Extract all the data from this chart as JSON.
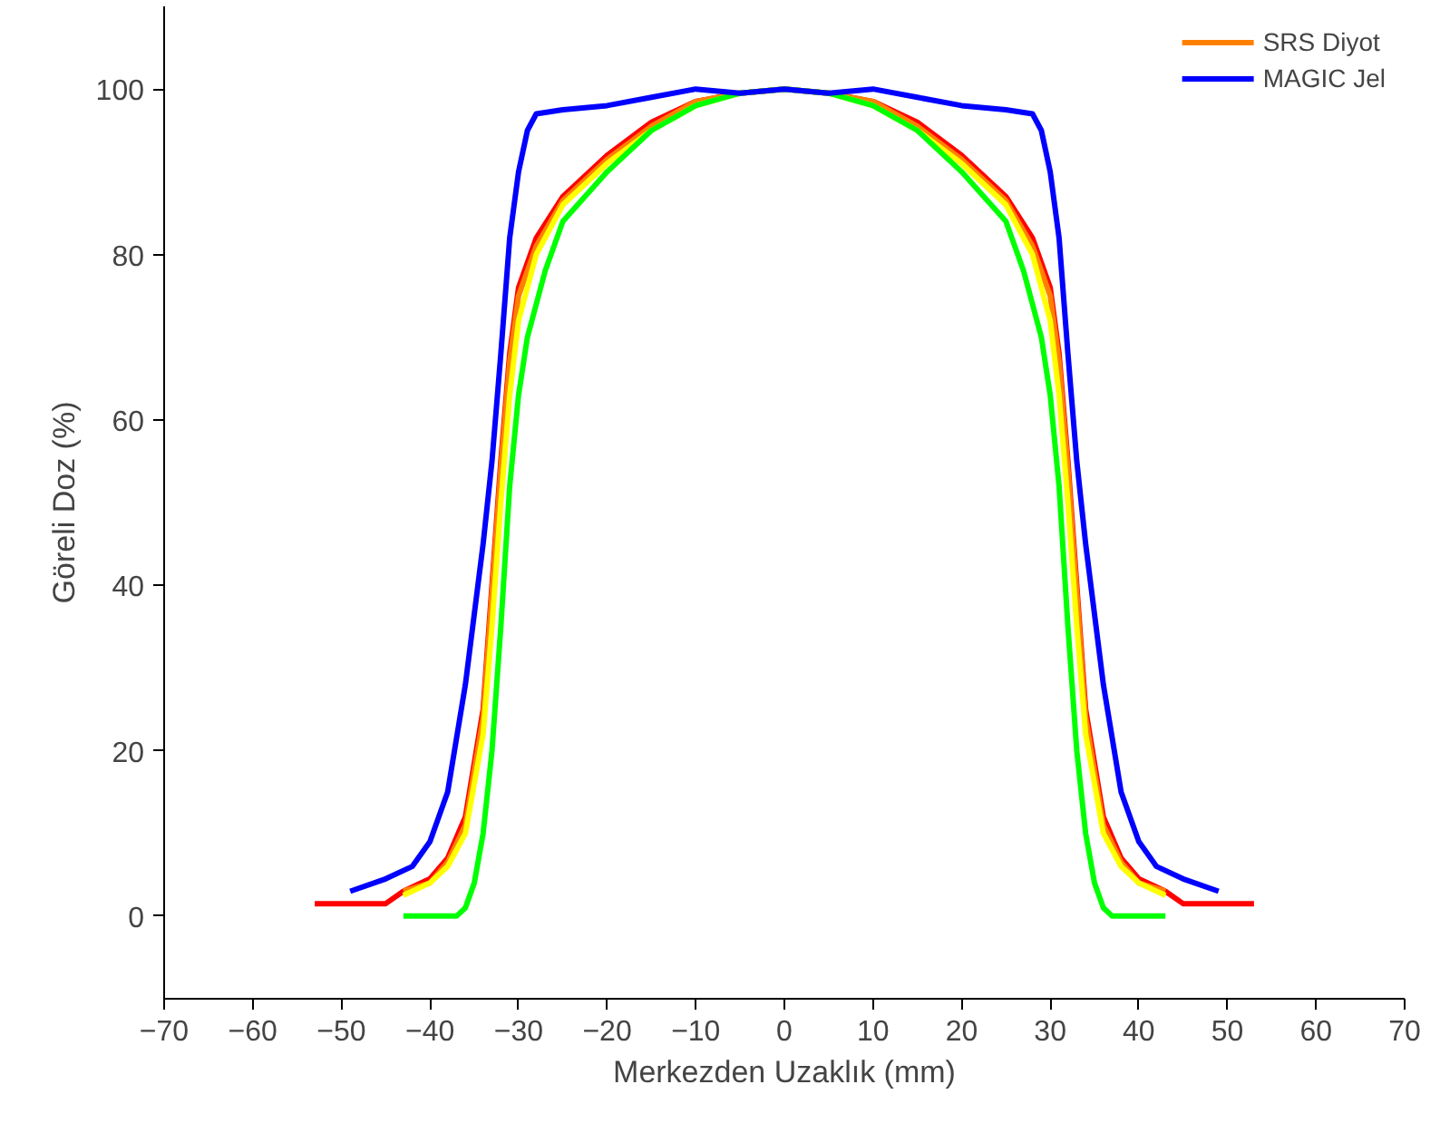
{
  "chart_data": {
    "type": "line",
    "xlabel": "Merkezden Uzaklık (mm)",
    "ylabel": "Göreli Doz (%)",
    "xlim": [
      -70,
      70
    ],
    "xticks": [
      -70,
      -60,
      -50,
      -40,
      -30,
      -20,
      -10,
      0,
      10,
      20,
      30,
      40,
      50,
      60,
      70
    ],
    "ylim": [
      -10,
      110
    ],
    "yticks": [
      0,
      20,
      40,
      60,
      80,
      100
    ],
    "grid": false,
    "legend": "top right",
    "line_style": "solid",
    "marker": "none",
    "series": [
      {
        "color": "#ff0000",
        "x": [
          -53,
          -45,
          -43,
          -40,
          -38,
          -36,
          -34,
          -33,
          -32,
          -31,
          -30,
          -28,
          -25,
          -20,
          -15,
          -10,
          -5,
          0,
          5,
          10,
          15,
          20,
          25,
          28,
          30,
          31,
          32,
          33,
          34,
          36,
          38,
          40,
          43,
          45,
          53
        ],
        "values": [
          1.5,
          1.5,
          3,
          4.5,
          7,
          12,
          25,
          40,
          55,
          68,
          76,
          82,
          87,
          92,
          96,
          98.5,
          99.5,
          100,
          99.5,
          98.5,
          96,
          92,
          87,
          82,
          76,
          68,
          55,
          40,
          25,
          12,
          7,
          4.5,
          3,
          1.5,
          1.5
        ]
      },
      {
        "name": "SRS Diyot",
        "color": "#ff8000",
        "x": [
          -43,
          -40,
          -38,
          -36,
          -34,
          -33,
          -32,
          -31,
          -30,
          -28,
          -25,
          -20,
          -15,
          -10,
          -5,
          0,
          5,
          10,
          15,
          20,
          25,
          28,
          30,
          31,
          32,
          33,
          34,
          36,
          38,
          40,
          43
        ],
        "values": [
          3,
          4,
          6.5,
          11,
          24,
          39,
          54,
          67,
          75,
          81,
          86.5,
          91.5,
          95.5,
          98.5,
          99.5,
          100,
          99.5,
          98.5,
          95.5,
          91.5,
          86.5,
          81,
          75,
          67,
          54,
          39,
          24,
          11,
          6.5,
          4,
          3
        ]
      },
      {
        "color": "#ffff00",
        "x": [
          -43,
          -40,
          -38,
          -36,
          -34,
          -33,
          -32,
          -31,
          -30,
          -28,
          -25,
          -20,
          -15,
          -10,
          -5,
          0,
          5,
          10,
          15,
          20,
          25,
          28,
          30,
          31,
          32,
          33,
          34,
          36,
          38,
          40,
          43
        ],
        "values": [
          2.5,
          4,
          6,
          10,
          22,
          35,
          50,
          63,
          72,
          80,
          86,
          91,
          95,
          98,
          99.5,
          100,
          99.5,
          98,
          95,
          91,
          86,
          80,
          72,
          63,
          50,
          35,
          22,
          10,
          6,
          4,
          2.5
        ]
      },
      {
        "color": "#00ff00",
        "x": [
          -43,
          -37,
          -36,
          -35,
          -34,
          -33,
          -32,
          -31,
          -30,
          -29,
          -27,
          -25,
          -20,
          -15,
          -10,
          -5,
          0,
          5,
          10,
          15,
          20,
          25,
          27,
          29,
          30,
          31,
          32,
          33,
          34,
          35,
          36,
          37,
          43
        ],
        "values": [
          0,
          0,
          1,
          4,
          10,
          20,
          35,
          52,
          63,
          70,
          78,
          84,
          90,
          95,
          98,
          99.5,
          100,
          99.5,
          98,
          95,
          90,
          84,
          78,
          70,
          63,
          52,
          35,
          20,
          10,
          4,
          1,
          0,
          0
        ]
      },
      {
        "name": "MAGIC Jel",
        "color": "#0000ff",
        "x": [
          -49,
          -45,
          -42,
          -40,
          -38,
          -36,
          -34,
          -33,
          -32,
          -31,
          -30,
          -29,
          -28,
          -25,
          -20,
          -15,
          -10,
          -5,
          0,
          5,
          10,
          15,
          20,
          25,
          28,
          29,
          30,
          31,
          32,
          33,
          34,
          36,
          38,
          40,
          42,
          45,
          49
        ],
        "values": [
          3,
          4.5,
          6,
          9,
          15,
          28,
          45,
          55,
          68,
          82,
          90,
          95,
          97,
          97.5,
          98,
          99,
          100,
          99.5,
          100,
          99.5,
          100,
          99,
          98,
          97.5,
          97,
          95,
          90,
          82,
          68,
          55,
          45,
          28,
          15,
          9,
          6,
          4.5,
          3
        ]
      }
    ]
  }
}
